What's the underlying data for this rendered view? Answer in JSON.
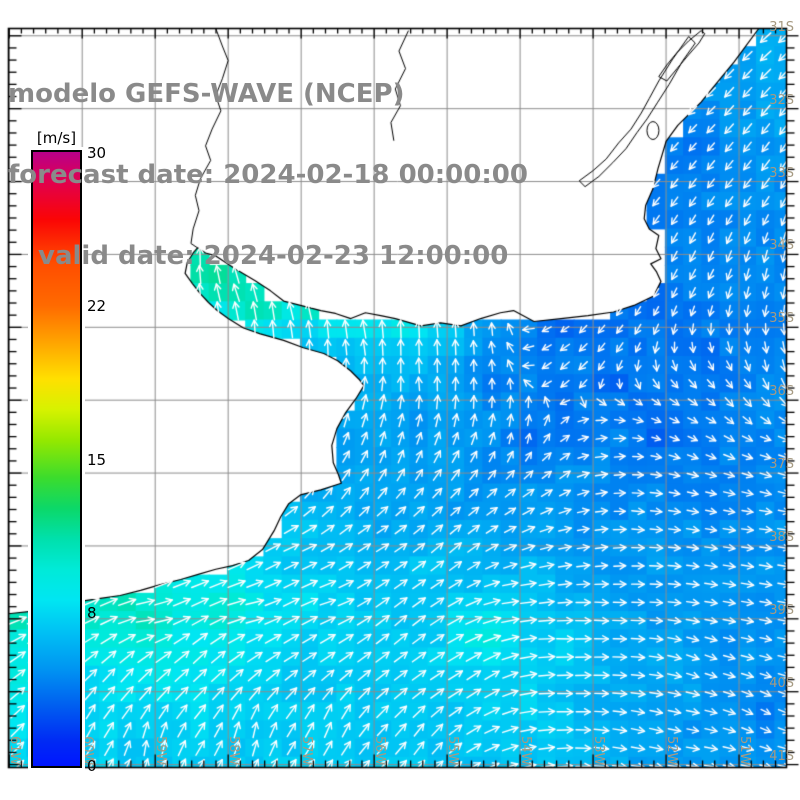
{
  "title": {
    "line1": "modelo GEFS-WAVE (NCEP)",
    "line2": "forecast date: 2024-02-18 00:00:00",
    "line3": "valid date: 2024-02-23 12:00:00"
  },
  "colorbar": {
    "unit": "[m/s]",
    "tick_labels": [
      "30",
      "22",
      "15",
      "8",
      "0"
    ],
    "tick_values": [
      30,
      22,
      15,
      8,
      0
    ],
    "gradient_stops": [
      [
        0,
        "#b8008a"
      ],
      [
        5,
        "#e2004c"
      ],
      [
        11,
        "#fb0505"
      ],
      [
        18,
        "#ff4c00"
      ],
      [
        25,
        "#ff6a00"
      ],
      [
        31,
        "#ffa400"
      ],
      [
        37,
        "#ffe000"
      ],
      [
        42,
        "#d6f200"
      ],
      [
        47,
        "#94e800"
      ],
      [
        53,
        "#3cdc2c"
      ],
      [
        58,
        "#0cd868"
      ],
      [
        63,
        "#00e0ac"
      ],
      [
        68,
        "#00ead8"
      ],
      [
        73,
        "#00e6f2"
      ],
      [
        78,
        "#00c2f4"
      ],
      [
        84,
        "#0096f2"
      ],
      [
        90,
        "#0060f0"
      ],
      [
        96,
        "#002af4"
      ],
      [
        100,
        "#0016ff"
      ]
    ],
    "value_anchors": [
      [
        0,
        1.0
      ],
      [
        8,
        0.75
      ],
      [
        15,
        0.5
      ],
      [
        22,
        0.25
      ],
      [
        30,
        0.0
      ]
    ]
  },
  "map": {
    "extent": {
      "west": -61.01,
      "east": -50.35,
      "north": -30.9,
      "south": -41.04
    },
    "grid_step_deg": 1,
    "minor_ticks_per_deg": 6,
    "lon_labels": [
      {
        "text": "61W",
        "lon": -61
      },
      {
        "text": "60W",
        "lon": -60
      },
      {
        "text": "59W",
        "lon": -59
      },
      {
        "text": "58W",
        "lon": -58
      },
      {
        "text": "57W",
        "lon": -57
      },
      {
        "text": "56W",
        "lon": -56
      },
      {
        "text": "55W",
        "lon": -55
      },
      {
        "text": "54W",
        "lon": -54
      },
      {
        "text": "53W",
        "lon": -53
      },
      {
        "text": "52W",
        "lon": -52
      },
      {
        "text": "51W",
        "lon": -51
      }
    ],
    "lat_labels": [
      {
        "text": "31S",
        "lat": -31
      },
      {
        "text": "32S",
        "lat": -32
      },
      {
        "text": "33S",
        "lat": -33
      },
      {
        "text": "34S",
        "lat": -34
      },
      {
        "text": "35S",
        "lat": -35
      },
      {
        "text": "36S",
        "lat": -36
      },
      {
        "text": "37S",
        "lat": -37
      },
      {
        "text": "38S",
        "lat": -38
      },
      {
        "text": "39S",
        "lat": -39
      },
      {
        "text": "40S",
        "lat": -40
      },
      {
        "text": "41S",
        "lat": -41
      }
    ],
    "colors": {
      "grid": "#8c8c8c",
      "coast": "#000000",
      "frame": "#000000",
      "labels": "#a69a82",
      "title": "#8a8a8a",
      "arrows": "#ffffff",
      "land": "#ffffff"
    }
  },
  "coastline": [
    [
      -50.73,
      -30.9
    ],
    [
      -51.07,
      -31.36
    ],
    [
      -51.29,
      -31.63
    ],
    [
      -51.52,
      -31.91
    ],
    [
      -51.84,
      -32.23
    ],
    [
      -52.0,
      -32.45
    ],
    [
      -52.11,
      -32.82
    ],
    [
      -52.18,
      -33.1
    ],
    [
      -52.28,
      -33.33
    ],
    [
      -52.3,
      -33.51
    ],
    [
      -52.23,
      -33.65
    ],
    [
      -52.1,
      -33.74
    ],
    [
      -52.14,
      -33.92
    ],
    [
      -52.07,
      -34.06
    ],
    [
      -52.21,
      -34.13
    ],
    [
      -52.13,
      -34.24
    ],
    [
      -52.07,
      -34.37
    ],
    [
      -52.17,
      -34.57
    ],
    [
      -52.44,
      -34.7
    ],
    [
      -52.72,
      -34.79
    ],
    [
      -53.07,
      -34.84
    ],
    [
      -53.44,
      -34.88
    ],
    [
      -53.81,
      -34.92
    ],
    [
      -54.09,
      -34.77
    ],
    [
      -54.27,
      -34.8
    ],
    [
      -54.54,
      -34.88
    ],
    [
      -54.81,
      -34.98
    ],
    [
      -55.09,
      -34.94
    ],
    [
      -55.36,
      -34.98
    ],
    [
      -55.71,
      -34.88
    ],
    [
      -55.91,
      -34.84
    ],
    [
      -56.12,
      -34.8
    ],
    [
      -56.32,
      -34.88
    ],
    [
      -56.53,
      -34.81
    ],
    [
      -56.73,
      -34.77
    ],
    [
      -57.01,
      -34.7
    ],
    [
      -57.24,
      -34.64
    ],
    [
      -57.42,
      -34.5
    ],
    [
      -57.63,
      -34.36
    ],
    [
      -57.9,
      -34.2
    ],
    [
      -58.17,
      -34.02
    ],
    [
      -58.31,
      -33.98
    ],
    [
      -58.42,
      -33.91
    ],
    [
      -58.48,
      -33.98
    ],
    [
      -58.56,
      -34.11
    ],
    [
      -58.59,
      -34.26
    ],
    [
      -58.49,
      -34.4
    ],
    [
      -58.38,
      -34.54
    ],
    [
      -58.27,
      -34.66
    ],
    [
      -58.15,
      -34.77
    ],
    [
      -58.0,
      -34.88
    ],
    [
      -57.79,
      -35.01
    ],
    [
      -57.56,
      -35.09
    ],
    [
      -57.24,
      -35.18
    ],
    [
      -56.97,
      -35.28
    ],
    [
      -56.69,
      -35.36
    ],
    [
      -56.5,
      -35.46
    ],
    [
      -56.32,
      -35.6
    ],
    [
      -56.2,
      -35.72
    ],
    [
      -56.14,
      -35.8
    ],
    [
      -56.25,
      -35.98
    ],
    [
      -56.39,
      -36.17
    ],
    [
      -56.51,
      -36.39
    ],
    [
      -56.58,
      -36.62
    ],
    [
      -56.56,
      -36.86
    ],
    [
      -56.49,
      -37.02
    ],
    [
      -56.45,
      -37.14
    ],
    [
      -56.73,
      -37.23
    ],
    [
      -57.01,
      -37.3
    ],
    [
      -57.17,
      -37.42
    ],
    [
      -57.28,
      -37.6
    ],
    [
      -57.37,
      -37.79
    ],
    [
      -57.53,
      -38.05
    ],
    [
      -57.72,
      -38.2
    ],
    [
      -57.94,
      -38.27
    ],
    [
      -58.17,
      -38.32
    ],
    [
      -58.41,
      -38.39
    ],
    [
      -58.65,
      -38.46
    ],
    [
      -58.93,
      -38.53
    ],
    [
      -59.2,
      -38.61
    ],
    [
      -59.48,
      -38.68
    ],
    [
      -59.75,
      -38.72
    ],
    [
      -60.03,
      -38.76
    ],
    [
      -60.3,
      -38.82
    ],
    [
      -60.64,
      -38.89
    ],
    [
      -61.01,
      -38.93
    ]
  ],
  "rivers": [
    [
      [
        -58.17,
        -30.9
      ],
      [
        -58.08,
        -31.14
      ],
      [
        -58.0,
        -31.34
      ],
      [
        -58.08,
        -31.59
      ],
      [
        -58.17,
        -31.82
      ],
      [
        -58.1,
        -32.03
      ],
      [
        -58.22,
        -32.28
      ],
      [
        -58.31,
        -32.51
      ],
      [
        -58.24,
        -32.71
      ],
      [
        -58.38,
        -32.96
      ],
      [
        -58.45,
        -33.19
      ],
      [
        -58.4,
        -33.4
      ],
      [
        -58.48,
        -33.65
      ],
      [
        -58.51,
        -33.85
      ],
      [
        -58.42,
        -33.91
      ]
    ],
    [
      [
        -55.53,
        -30.93
      ],
      [
        -55.66,
        -31.21
      ],
      [
        -55.57,
        -31.45
      ],
      [
        -55.71,
        -31.73
      ],
      [
        -55.64,
        -31.96
      ],
      [
        -55.77,
        -32.19
      ],
      [
        -55.73,
        -32.44
      ]
    ]
  ],
  "lagoons": [
    [
      [
        -51.52,
        -30.93
      ],
      [
        -51.69,
        -31.07
      ],
      [
        -51.85,
        -31.23
      ],
      [
        -51.99,
        -31.4
      ],
      [
        -52.1,
        -31.56
      ],
      [
        -51.99,
        -31.62
      ],
      [
        -51.85,
        -31.45
      ],
      [
        -51.69,
        -31.26
      ],
      [
        -51.55,
        -31.1
      ],
      [
        -51.47,
        -30.97
      ]
    ],
    [
      [
        -51.69,
        -31.01
      ],
      [
        -51.91,
        -31.32
      ],
      [
        -52.1,
        -31.62
      ],
      [
        -52.23,
        -31.86
      ],
      [
        -52.34,
        -32.06
      ],
      [
        -52.48,
        -32.28
      ],
      [
        -52.65,
        -32.47
      ],
      [
        -52.82,
        -32.69
      ],
      [
        -53.0,
        -32.85
      ],
      [
        -53.19,
        -32.99
      ],
      [
        -53.11,
        -33.07
      ],
      [
        -52.92,
        -32.93
      ],
      [
        -52.73,
        -32.74
      ],
      [
        -52.55,
        -32.55
      ],
      [
        -52.4,
        -32.33
      ],
      [
        -52.26,
        -32.14
      ],
      [
        -52.12,
        -31.92
      ],
      [
        -51.96,
        -31.67
      ],
      [
        -51.77,
        -31.34
      ],
      [
        -51.6,
        -31.1
      ]
    ]
  ],
  "small_lagoon": {
    "lon": -52.18,
    "lat": -32.3,
    "rx_deg": 0.082,
    "ry_deg": 0.123
  },
  "field": {
    "cell_deg": 0.25,
    "speed_points": [
      [
        -50.58,
        -31.34,
        6.5
      ],
      [
        -51.12,
        -31.75,
        5.5
      ],
      [
        -51.81,
        -31.34,
        3.0
      ],
      [
        -52.63,
        -31.89,
        2.5
      ],
      [
        -53.18,
        -33.05,
        2.6
      ],
      [
        -52.9,
        -33.95,
        3.1
      ],
      [
        -52.15,
        -34.63,
        3.5
      ],
      [
        -51.53,
        -32.58,
        4.0
      ],
      [
        -50.71,
        -33.4,
        4.6
      ],
      [
        -50.58,
        -34.77,
        4.2
      ],
      [
        -51.53,
        -35.45,
        3.6
      ],
      [
        -52.08,
        -36.41,
        3.0
      ],
      [
        -51.53,
        -37.1,
        4.0
      ],
      [
        -50.71,
        -36.82,
        4.2
      ],
      [
        -52.63,
        -37.23,
        4.3
      ],
      [
        -52.9,
        -38.19,
        5.0
      ],
      [
        -52.08,
        -38.88,
        5.2
      ],
      [
        -51.12,
        -39.15,
        4.6
      ],
      [
        -50.58,
        -40.25,
        4.2
      ],
      [
        -51.53,
        -40.59,
        4.9
      ],
      [
        -52.63,
        -40.11,
        6.0
      ],
      [
        -53.45,
        -39.42,
        8.0
      ],
      [
        -54.55,
        -39.08,
        9.0
      ],
      [
        -54.0,
        -40.11,
        8.2
      ],
      [
        -53.45,
        -40.93,
        7.4
      ],
      [
        -52.22,
        -40.93,
        5.6
      ],
      [
        -55.37,
        -38.47,
        7.5
      ],
      [
        -55.92,
        -39.49,
        7.8
      ],
      [
        -57.01,
        -39.97,
        7.2
      ],
      [
        -57.7,
        -40.59,
        7.0
      ],
      [
        -59.07,
        -40.79,
        6.8
      ],
      [
        -60.3,
        -40.66,
        7.0
      ],
      [
        -60.03,
        -39.97,
        7.2
      ],
      [
        -60.58,
        -39.49,
        9.5
      ],
      [
        -60.3,
        -38.99,
        12.2
      ],
      [
        -59.07,
        -39.04,
        11.8
      ],
      [
        -57.97,
        -38.9,
        10.8
      ],
      [
        -56.88,
        -38.74,
        8.2
      ],
      [
        -60.85,
        -38.26,
        9.5
      ],
      [
        -59.75,
        -38.36,
        9.8
      ],
      [
        -58.38,
        -38.36,
        9.2
      ],
      [
        -57.01,
        -38.03,
        7.2
      ],
      [
        -55.92,
        -37.64,
        5.6
      ],
      [
        -57.01,
        -37.12,
        5.8
      ],
      [
        -56.33,
        -36.58,
        5.2
      ],
      [
        -55.51,
        -36.27,
        4.6
      ],
      [
        -57.01,
        -36.03,
        6.0
      ],
      [
        -57.29,
        -35.34,
        6.4
      ],
      [
        -56.47,
        -35.48,
        5.6
      ],
      [
        -57.97,
        -34.52,
        12.8
      ],
      [
        -58.22,
        -34.27,
        13.2
      ],
      [
        -57.53,
        -34.66,
        12.5
      ],
      [
        -56.85,
        -34.66,
        12.2
      ],
      [
        -56.26,
        -34.79,
        11.8
      ],
      [
        -55.58,
        -34.93,
        10.5
      ],
      [
        -55.03,
        -35.0,
        8.5
      ],
      [
        -56.95,
        -35.15,
        6.5
      ],
      [
        -54.48,
        -34.93,
        4.6
      ],
      [
        -53.93,
        -35.21,
        3.8
      ],
      [
        -53.38,
        -34.93,
        3.4
      ],
      [
        -54.48,
        -35.75,
        3.7
      ],
      [
        -53.93,
        -36.58,
        3.5
      ],
      [
        -54.48,
        -37.12,
        4.3
      ],
      [
        -55.03,
        -37.4,
        5.0
      ],
      [
        -53.93,
        -37.95,
        5.2
      ],
      [
        -53.11,
        -37.67,
        4.6
      ],
      [
        -54.75,
        -38.22,
        6.6
      ],
      [
        -53.93,
        -38.49,
        7.2
      ],
      [
        -54.48,
        -39.26,
        10.2
      ],
      [
        -58.08,
        -34.74,
        7.6
      ],
      [
        -50.44,
        -32.03,
        6.2
      ],
      [
        -50.92,
        -32.44,
        5.2
      ],
      [
        -52.9,
        -34.9,
        3.3
      ],
      [
        -56.19,
        -40.93,
        7.2
      ],
      [
        -58.38,
        -39.29,
        8.8
      ],
      [
        -59.48,
        -38.74,
        11.2
      ],
      [
        -61.12,
        -38.95,
        11.8
      ],
      [
        -56.47,
        -39.01,
        8.0
      ],
      [
        -55.37,
        -37.1,
        4.8
      ],
      [
        -53.45,
        -36.27,
        3.2
      ],
      [
        -52.63,
        -35.73,
        3.2
      ],
      [
        -55.51,
        -35.38,
        6.2
      ],
      [
        -55.78,
        -35.86,
        6.0
      ]
    ],
    "dir_points": [
      [
        -50.58,
        -31.14,
        222
      ],
      [
        -51.53,
        -32.16,
        225
      ],
      [
        -52.63,
        -32.99,
        225
      ],
      [
        -53.18,
        -34.08,
        230
      ],
      [
        -52.36,
        -34.63,
        238
      ],
      [
        -51.53,
        -34.36,
        240
      ],
      [
        -50.68,
        -34.63,
        255
      ],
      [
        -50.56,
        -35.45,
        278
      ],
      [
        -50.99,
        -36.0,
        310
      ],
      [
        -51.53,
        -36.41,
        335
      ],
      [
        -50.58,
        -36.68,
        345
      ],
      [
        -51.53,
        -37.37,
        348
      ],
      [
        -50.71,
        -37.78,
        355
      ],
      [
        -50.99,
        -38.6,
        350
      ],
      [
        -51.53,
        -39.56,
        338
      ],
      [
        -50.71,
        -40.25,
        332
      ],
      [
        -52.22,
        -40.52,
        345
      ],
      [
        -52.9,
        -38.88,
        355
      ],
      [
        -53.45,
        -35.59,
        222
      ],
      [
        -52.77,
        -35.04,
        230
      ],
      [
        -53.99,
        -36.41,
        85
      ],
      [
        -54.55,
        -35.86,
        92
      ],
      [
        -55.37,
        -35.73,
        97
      ],
      [
        -56.19,
        -35.11,
        102
      ],
      [
        -57.01,
        -34.77,
        106
      ],
      [
        -57.84,
        -34.47,
        110
      ],
      [
        -55.1,
        -35.04,
        95
      ],
      [
        -54.41,
        -34.88,
        92
      ],
      [
        -53.62,
        -35.18,
        210
      ],
      [
        -52.9,
        -36.82,
        5
      ],
      [
        -52.36,
        -37.64,
        352
      ],
      [
        -53.45,
        -36.96,
        40
      ],
      [
        -52.9,
        -37.92,
        8
      ],
      [
        -54.96,
        -37.99,
        42
      ],
      [
        -55.64,
        -39.08,
        42
      ],
      [
        -54.55,
        -39.84,
        35
      ],
      [
        -53.45,
        -39.29,
        358
      ],
      [
        -54.0,
        -38.74,
        5
      ],
      [
        -53.45,
        -40.11,
        358
      ],
      [
        -52.63,
        -40.66,
        350
      ],
      [
        -56.6,
        -40.45,
        70
      ],
      [
        -57.7,
        -40.59,
        82
      ],
      [
        -59.07,
        -40.73,
        85
      ],
      [
        -60.03,
        -40.45,
        65
      ],
      [
        -60.44,
        -39.63,
        42
      ],
      [
        -60.3,
        -38.91,
        15
      ],
      [
        -59.07,
        -38.99,
        4
      ],
      [
        -57.7,
        -38.88,
        8
      ],
      [
        -56.6,
        -38.74,
        15
      ],
      [
        -58.38,
        -38.12,
        12
      ],
      [
        -59.75,
        -37.99,
        15
      ],
      [
        -57.01,
        -38.05,
        22
      ],
      [
        -55.92,
        -37.92,
        30
      ],
      [
        -56.33,
        -37.1,
        55
      ],
      [
        -55.78,
        -36.55,
        75
      ],
      [
        -56.88,
        -36.27,
        85
      ],
      [
        -57.29,
        -35.45,
        95
      ],
      [
        -52.9,
        -32.44,
        222
      ],
      [
        -52.08,
        -31.62,
        222
      ],
      [
        -50.99,
        -32.99,
        230
      ],
      [
        -55.37,
        -40.66,
        55
      ],
      [
        -57.01,
        -39.29,
        30
      ],
      [
        -58.38,
        -39.56,
        45
      ],
      [
        -59.48,
        -39.84,
        50
      ],
      [
        -60.71,
        -38.6,
        10
      ],
      [
        -61.12,
        -38.05,
        15
      ]
    ]
  }
}
